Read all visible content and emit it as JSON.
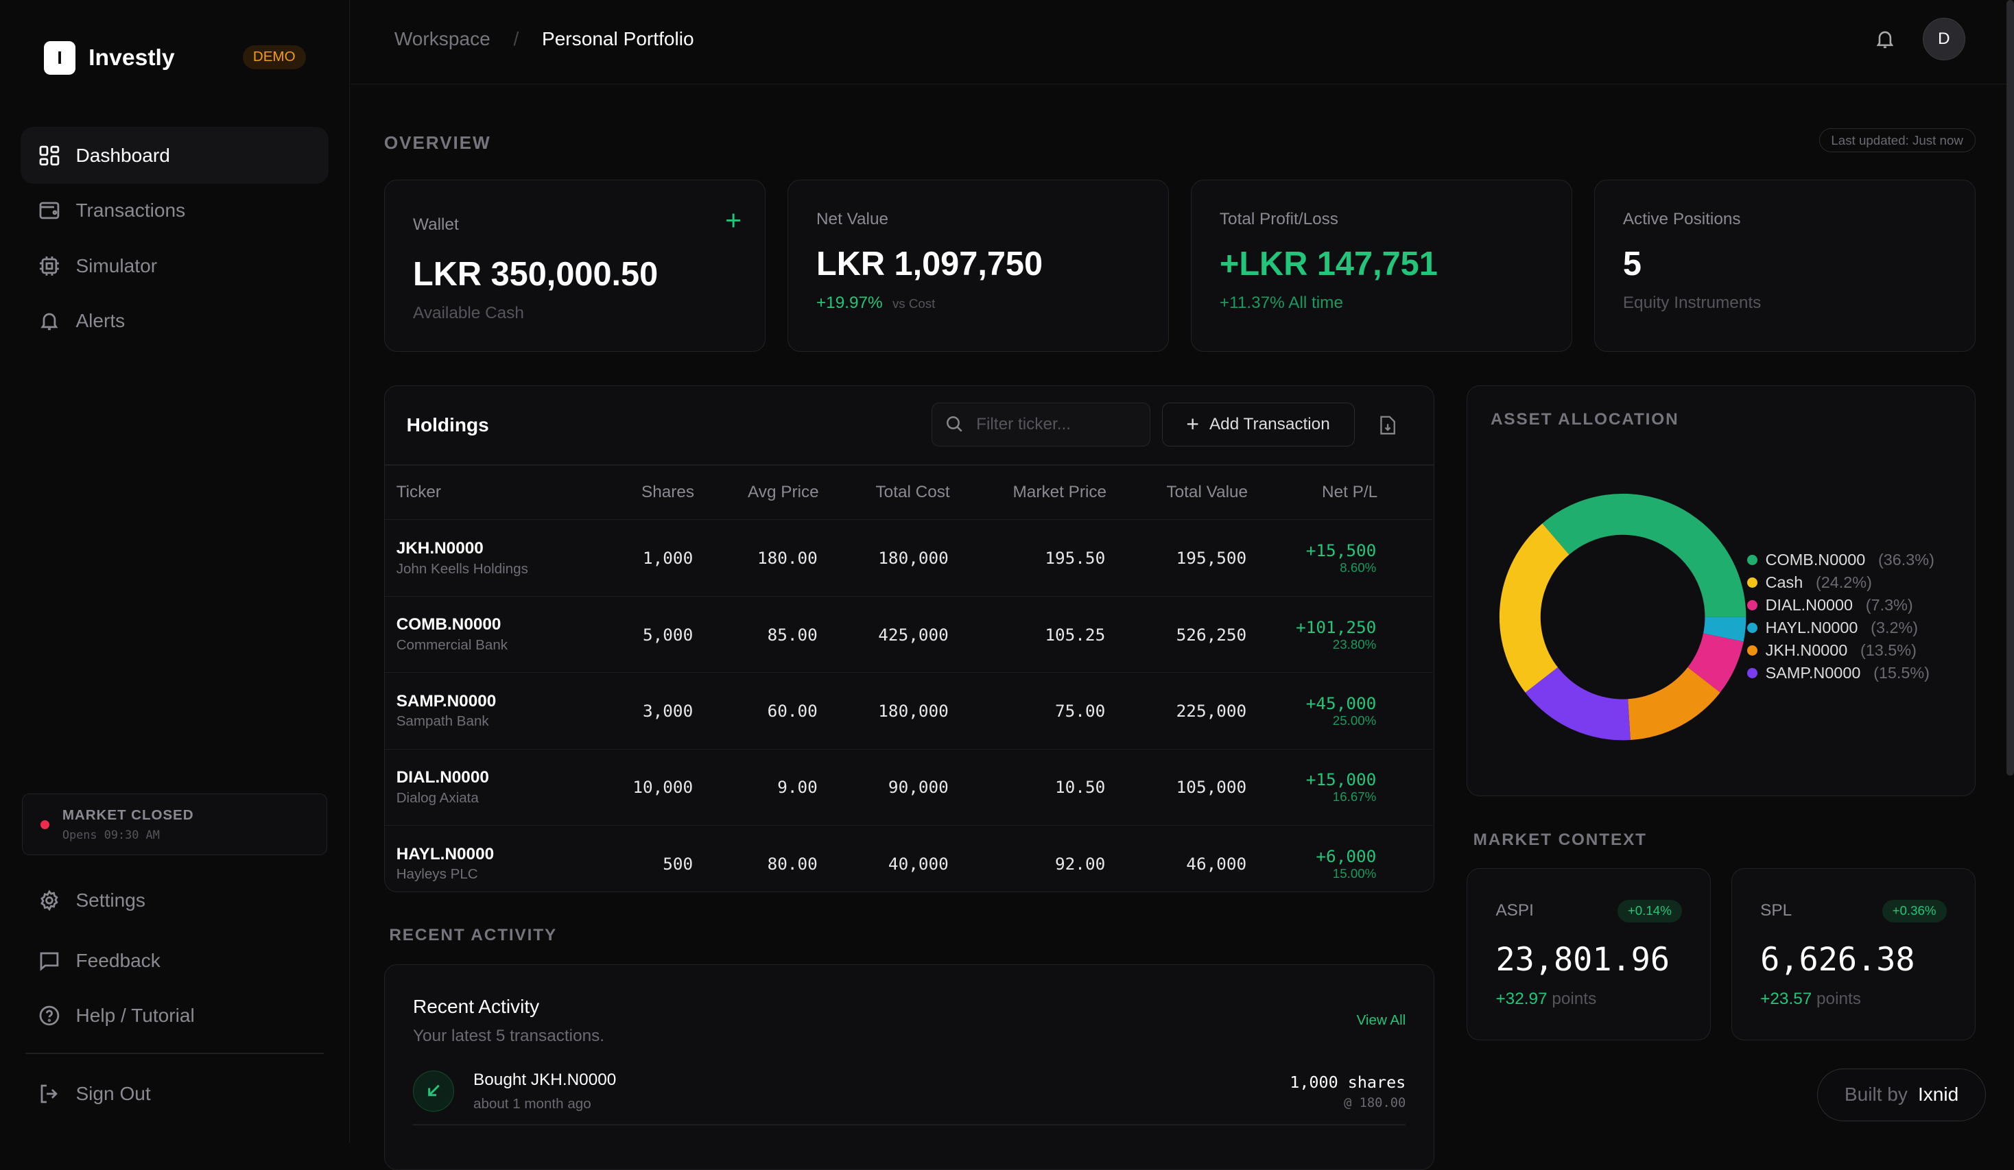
{
  "app": {
    "logo_letter": "I",
    "name": "Investly",
    "badge": "DEMO"
  },
  "sidebar": {
    "items": [
      {
        "label": "Dashboard",
        "icon": "dashboard-icon",
        "active": true
      },
      {
        "label": "Transactions",
        "icon": "wallet-icon"
      },
      {
        "label": "Simulator",
        "icon": "chip-icon"
      },
      {
        "label": "Alerts",
        "icon": "bell-icon"
      }
    ],
    "market": {
      "status": "MARKET CLOSED",
      "sub": "Opens 09:30 AM"
    },
    "bottom": [
      {
        "label": "Settings",
        "icon": "gear-icon"
      },
      {
        "label": "Feedback",
        "icon": "message-icon"
      },
      {
        "label": "Help / Tutorial",
        "icon": "help-icon"
      }
    ],
    "signout": "Sign Out"
  },
  "header": {
    "breadcrumb": [
      "Workspace",
      "/",
      "Personal Portfolio"
    ],
    "avatar": "D"
  },
  "overview": {
    "title": "OVERVIEW",
    "updated": "Last updated: Just now",
    "cards": [
      {
        "label": "Wallet",
        "value": "LKR 350,000.50",
        "sub": "Available Cash"
      },
      {
        "label": "Net Value",
        "value": "LKR 1,097,750",
        "change": "+19.97%",
        "sub": "vs Cost"
      },
      {
        "label": "Total Profit/Loss",
        "value": "+LKR 147,751",
        "sub": "+11.37% All time"
      },
      {
        "label": "Active Positions",
        "value": "5",
        "sub": "Equity Instruments"
      }
    ]
  },
  "holdings": {
    "title": "Holdings",
    "filter_placeholder": "Filter ticker...",
    "add_label": "Add Transaction",
    "columns": [
      "Ticker",
      "Shares",
      "Avg Price",
      "Total Cost",
      "Market Price",
      "Total Value",
      "Net P/L"
    ],
    "rows": [
      {
        "ticker": "JKH.N0000",
        "name": "John Keells Holdings",
        "shares": "1,000",
        "avg": "180.00",
        "cost": "180,000",
        "price": "195.50",
        "value": "195,500",
        "pl": "+15,500",
        "plp": "8.60%"
      },
      {
        "ticker": "COMB.N0000",
        "name": "Commercial Bank",
        "shares": "5,000",
        "avg": "85.00",
        "cost": "425,000",
        "price": "105.25",
        "value": "526,250",
        "pl": "+101,250",
        "plp": "23.80%"
      },
      {
        "ticker": "SAMP.N0000",
        "name": "Sampath Bank",
        "shares": "3,000",
        "avg": "60.00",
        "cost": "180,000",
        "price": "75.00",
        "value": "225,000",
        "pl": "+45,000",
        "plp": "25.00%"
      },
      {
        "ticker": "DIAL.N0000",
        "name": "Dialog Axiata",
        "shares": "10,000",
        "avg": "9.00",
        "cost": "90,000",
        "price": "10.50",
        "value": "105,000",
        "pl": "+15,000",
        "plp": "16.67%"
      },
      {
        "ticker": "HAYL.N0000",
        "name": "Hayleys PLC",
        "shares": "500",
        "avg": "80.00",
        "cost": "40,000",
        "price": "92.00",
        "value": "46,000",
        "pl": "+6,000",
        "plp": "15.00%"
      }
    ]
  },
  "chart_data": {
    "type": "pie",
    "title": "ASSET ALLOCATION",
    "legend": "right",
    "slices": [
      {
        "label": "COMB.N0000",
        "value": 36.3,
        "pct": "(36.3%)",
        "color": "#1fae6e"
      },
      {
        "label": "Cash",
        "value": 24.2,
        "pct": "(24.2%)",
        "color": "#f8c317"
      },
      {
        "label": "DIAL.N0000",
        "value": 7.3,
        "pct": "(7.3%)",
        "color": "#e52b87"
      },
      {
        "label": "HAYL.N0000",
        "value": 3.2,
        "pct": "(3.2%)",
        "color": "#1aa7cc"
      },
      {
        "label": "JKH.N0000",
        "value": 13.5,
        "pct": "(13.5%)",
        "color": "#f0900f"
      },
      {
        "label": "SAMP.N0000",
        "value": 15.5,
        "pct": "(15.5%)",
        "color": "#7b3cf0"
      }
    ],
    "draw_order": [
      "COMB.N0000",
      "HAYL.N0000",
      "DIAL.N0000",
      "JKH.N0000",
      "SAMP.N0000",
      "Cash"
    ]
  },
  "market_context": {
    "title": "MARKET CONTEXT",
    "indices": [
      {
        "name": "ASPI",
        "change": "+0.14%",
        "value": "23,801.96",
        "points": "+32.97",
        "unit": "points"
      },
      {
        "name": "SPL",
        "change": "+0.36%",
        "value": "6,626.38",
        "points": "+23.57",
        "unit": "points"
      }
    ]
  },
  "activity": {
    "section": "RECENT ACTIVITY",
    "title": "Recent Activity",
    "subtitle": "Your latest 5 transactions.",
    "view_all": "View All",
    "items": [
      {
        "title": "Bought JKH.N0000",
        "time": "about 1 month ago",
        "qty": "1,000 shares",
        "price": "@ 180.00"
      }
    ]
  },
  "footer": {
    "built_by": "Built by",
    "author": "Ixnid"
  },
  "colors": {
    "accent": "#22c57a",
    "background": "#0a0a0a",
    "card": "#0e0e10"
  }
}
